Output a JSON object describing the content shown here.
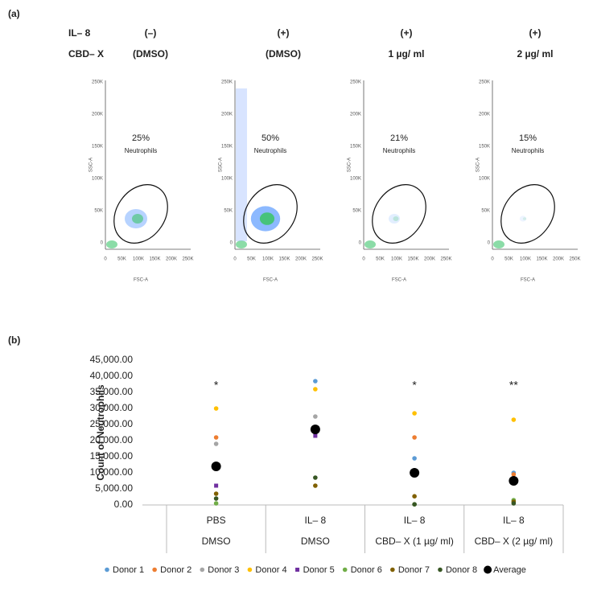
{
  "panel_a": {
    "label": "(a)",
    "row_labels": [
      "IL– 8",
      "CBD– X"
    ],
    "plots": [
      {
        "il8": "(–)",
        "cbdx": "(DMSO)",
        "percent": "25%",
        "gate": "Neutrophils"
      },
      {
        "il8": "(+)",
        "cbdx": "(DMSO)",
        "percent": "50%",
        "gate": "Neutrophils"
      },
      {
        "il8": "(+)",
        "cbdx": "1 µg/ ml",
        "percent": "21%",
        "gate": "Neutrophils"
      },
      {
        "il8": "(+)",
        "cbdx": "2 µg/ ml",
        "percent": "15%",
        "gate": "Neutrophils"
      }
    ],
    "x_label": "FSC-A",
    "y_label": "SSC-A",
    "x_tick_labels": [
      "0",
      "50K",
      "100K",
      "150K",
      "200K",
      "250K"
    ],
    "y_tick_labels": [
      "0",
      "50K",
      "100K",
      "150K",
      "200K",
      "250K"
    ]
  },
  "chart_data": {
    "type": "scatter",
    "label": "(b)",
    "y_label": "Count of Neutrophils",
    "categories": [
      "PBS",
      "IL– 8",
      "IL– 8",
      "IL– 8"
    ],
    "subcategories": [
      "DMSO",
      "DMSO",
      "CBD– X (1 µg/ ml)",
      "CBD– X (2 µg/ ml)"
    ],
    "annotations": [
      "*",
      null,
      "*",
      "**"
    ],
    "ylim": [
      0,
      45000
    ],
    "yticks": [
      {
        "value": 0,
        "label": "0.00"
      },
      {
        "value": 5000,
        "label": "5,000.00"
      },
      {
        "value": 10000,
        "label": "10,000.00"
      },
      {
        "value": 15000,
        "label": "15,000.00"
      },
      {
        "value": 20000,
        "label": "20,000.00"
      },
      {
        "value": 25000,
        "label": "25,000.00"
      },
      {
        "value": 30000,
        "label": "30,000.00"
      },
      {
        "value": 35000,
        "label": "35,000.00"
      },
      {
        "value": 40000,
        "label": "40,000.00"
      },
      {
        "value": 45000,
        "label": "45,000.00"
      }
    ],
    "series": [
      {
        "name": "Donor 1",
        "color": "#5b9bd5",
        "values": [
          null,
          38500,
          14500,
          10000
        ]
      },
      {
        "name": "Donor 2",
        "color": "#ed7d31",
        "values": [
          21000,
          null,
          21000,
          9500
        ]
      },
      {
        "name": "Donor 3",
        "color": "#a5a5a5",
        "values": [
          19000,
          27500,
          null,
          8000
        ]
      },
      {
        "name": "Donor 4",
        "color": "#ffc000",
        "values": [
          30000,
          36000,
          28500,
          26500
        ]
      },
      {
        "name": "Donor 5",
        "color": "#7030a0",
        "marker": "square",
        "values": [
          6000,
          21500,
          null,
          null
        ]
      },
      {
        "name": "Donor 6",
        "color": "#70ad47",
        "values": [
          500,
          null,
          200,
          1500
        ]
      },
      {
        "name": "Donor 7",
        "color": "#806000",
        "values": [
          3500,
          6000,
          2700,
          1000
        ]
      },
      {
        "name": "Donor 8",
        "color": "#375623",
        "values": [
          2000,
          8500,
          200,
          500
        ]
      },
      {
        "name": "Average",
        "color": "#000000",
        "marker": "large",
        "values": [
          12000,
          23500,
          10000,
          7500
        ]
      }
    ]
  }
}
